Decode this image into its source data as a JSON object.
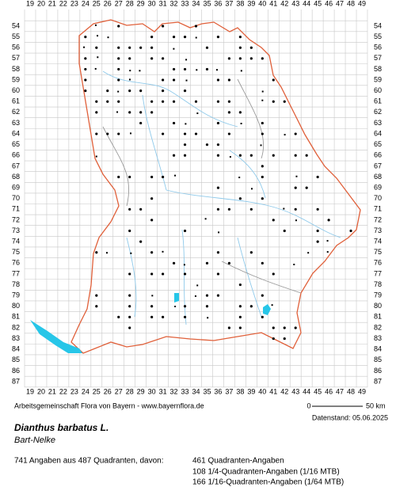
{
  "map": {
    "columns": [
      "19",
      "20",
      "21",
      "22",
      "23",
      "24",
      "25",
      "26",
      "27",
      "28",
      "29",
      "30",
      "31",
      "32",
      "33",
      "34",
      "35",
      "36",
      "37",
      "38",
      "39",
      "40",
      "41",
      "42",
      "43",
      "44",
      "45",
      "46",
      "47",
      "48",
      "49"
    ],
    "rows": [
      "54",
      "55",
      "56",
      "57",
      "58",
      "59",
      "60",
      "61",
      "62",
      "63",
      "64",
      "65",
      "66",
      "67",
      "68",
      "69",
      "70",
      "71",
      "72",
      "73",
      "74",
      "75",
      "76",
      "77",
      "78",
      "79",
      "80",
      "81",
      "82",
      "83",
      "84",
      "85",
      "86",
      "87"
    ]
  },
  "footer": {
    "credit": "Arbeitsgemeinschaft Flora von Bayern - www.bayernflora.de",
    "scale_start": "0",
    "scale_end": "50 km",
    "date": "Datenstand: 05.06.2025"
  },
  "species": {
    "name": "Dianthus barbatus L.",
    "common_name": "Bart-Nelke"
  },
  "stats": {
    "summary": "741 Angaben aus 487 Quadranten, davon:",
    "lines": [
      "461 Quadranten-Angaben",
      "108 1/4-Quadranten-Angaben (1/16 MTB)",
      "166 1/16-Quadranten-Angaben (1/64 MTB)"
    ]
  }
}
